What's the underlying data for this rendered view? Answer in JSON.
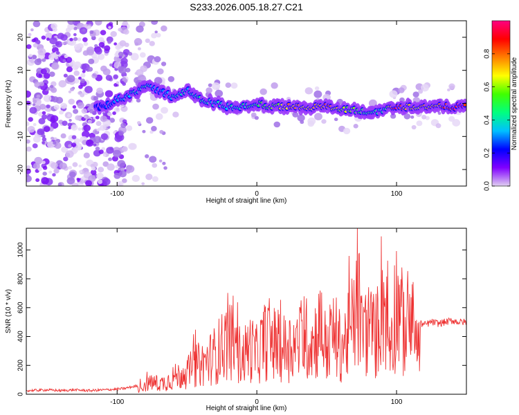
{
  "title": "S233.2026.005.18.27.C21",
  "chart_data": [
    {
      "type": "heatmap",
      "xlabel": "Height of straight line (km)",
      "ylabel": "Frequency (Hz)",
      "xlim": [
        -165,
        150
      ],
      "ylim": [
        -25,
        25
      ],
      "xticks": [
        -100,
        0,
        100
      ],
      "xtick_labels": [
        "-100",
        "0",
        "100"
      ],
      "yticks": [
        -20,
        -10,
        0,
        10,
        20
      ],
      "ytick_labels": [
        "-20",
        "-10",
        "0",
        "10",
        "20"
      ],
      "ridge": {
        "x": [
          -110,
          -100,
          -90,
          -80,
          -70,
          -60,
          -50,
          -40,
          -30,
          -20,
          -10,
          0,
          10,
          20,
          30,
          40,
          50,
          60,
          70,
          80,
          90,
          100,
          110,
          120,
          130,
          140,
          150
        ],
        "freq": [
          -1,
          1,
          3,
          5,
          4,
          2,
          4,
          1,
          0,
          -1,
          -1,
          0,
          -1,
          -1,
          -1,
          -1,
          -1,
          -2,
          -2,
          -3,
          -2,
          -1,
          -1,
          -1,
          -1,
          -1,
          -1
        ],
        "amplitude": [
          0.25,
          0.35,
          0.4,
          0.45,
          0.3,
          0.4,
          0.4,
          0.45,
          0.4,
          0.4,
          0.45,
          0.5,
          0.6,
          0.75,
          0.8,
          0.75,
          0.85,
          0.65,
          0.6,
          0.5,
          0.4,
          0.95,
          0.7,
          0.75,
          0.8,
          0.9,
          0.95
        ]
      },
      "colorbar": {
        "label": "Normalized spectral amplitude",
        "range": [
          0,
          1
        ],
        "ticks": [
          0.0,
          0.2,
          0.4,
          0.6,
          0.8
        ],
        "tick_labels": [
          "0.0",
          "0.2",
          "0.4",
          "0.6",
          "0.8"
        ],
        "colormap": [
          "#e0d0f0",
          "#8000ff",
          "#0000ff",
          "#00c0ff",
          "#00ff80",
          "#40ff00",
          "#ffff00",
          "#ff8000",
          "#ff0000",
          "#ff0080"
        ]
      }
    },
    {
      "type": "line",
      "xlabel": "Height of straight line (km)",
      "ylabel": "SNR (10 * v/v)",
      "xlim": [
        -165,
        150
      ],
      "ylim": [
        0,
        1150
      ],
      "xticks": [
        -100,
        0,
        100
      ],
      "xtick_labels": [
        "-100",
        "0",
        "100"
      ],
      "yticks": [
        0,
        200,
        400,
        600,
        800,
        1000
      ],
      "ytick_labels": [
        "0",
        "200",
        "400",
        "600",
        "800",
        "1000"
      ],
      "series": [
        {
          "name": "SNR",
          "color": "#ee3333",
          "x": [
            -165,
            -150,
            -140,
            -130,
            -120,
            -110,
            -100,
            -95,
            -90,
            -85,
            -80,
            -75,
            -70,
            -65,
            -60,
            -55,
            -50,
            -45,
            -40,
            -35,
            -30,
            -25,
            -20,
            -15,
            -10,
            -5,
            0,
            5,
            10,
            15,
            20,
            25,
            30,
            35,
            40,
            45,
            50,
            55,
            60,
            65,
            70,
            72,
            75,
            80,
            85,
            88,
            90,
            95,
            100,
            105,
            110,
            115,
            120,
            125,
            130,
            135,
            140,
            145,
            150
          ],
          "y": [
            25,
            30,
            25,
            30,
            25,
            30,
            35,
            40,
            50,
            60,
            100,
            120,
            110,
            130,
            180,
            200,
            220,
            300,
            320,
            360,
            420,
            500,
            600,
            450,
            400,
            500,
            420,
            560,
            600,
            480,
            500,
            520,
            540,
            600,
            550,
            700,
            480,
            650,
            500,
            600,
            800,
            1100,
            650,
            700,
            600,
            900,
            1100,
            550,
            1000,
            700,
            800,
            500,
            480,
            500,
            490,
            500,
            510,
            500,
            500
          ]
        }
      ]
    }
  ]
}
